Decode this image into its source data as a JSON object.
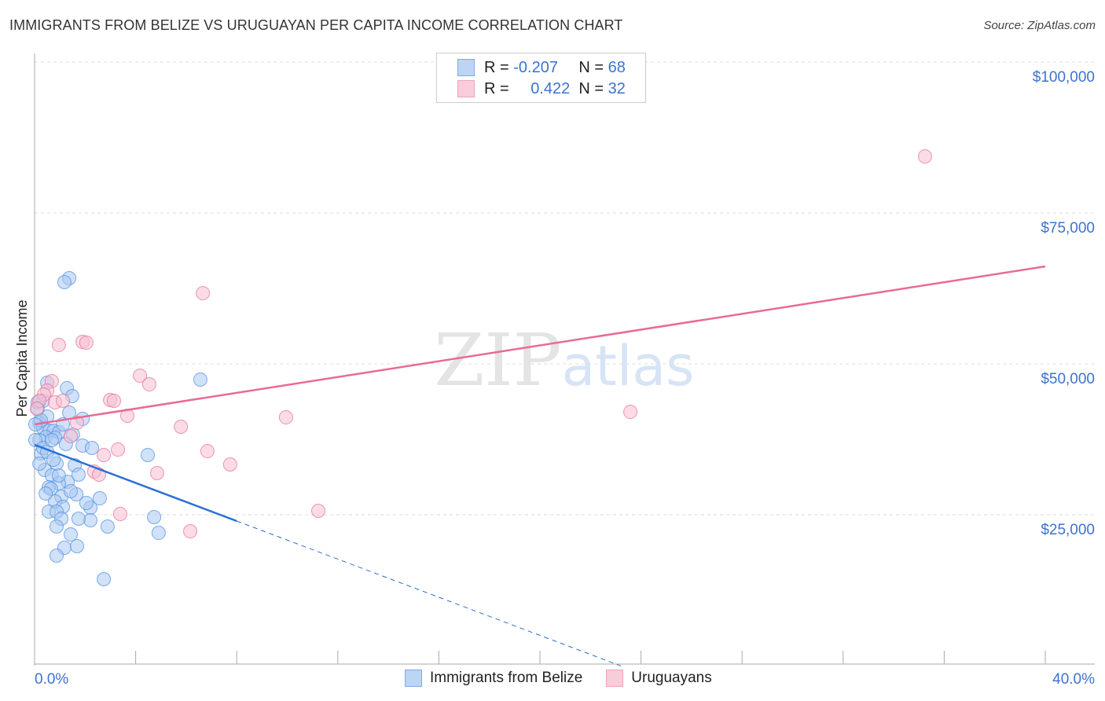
{
  "chart_data": {
    "type": "scatter",
    "title": "IMMIGRANTS FROM BELIZE VS URUGUAYAN PER CAPITA INCOME CORRELATION CHART",
    "source": "Source: ZipAtlas.com",
    "xlabel": "",
    "ylabel": "Per Capita Income",
    "xlim": [
      0,
      40
    ],
    "ylim": [
      0,
      101500
    ],
    "x_tick_labels": [
      "0.0%",
      "40.0%"
    ],
    "y_ticks": [
      25000,
      50000,
      75000,
      100000
    ],
    "y_tick_labels": [
      "$25,000",
      "$50,000",
      "$75,000",
      "$100,000"
    ],
    "grid": true,
    "watermark": "ZIPatlas",
    "legend_position": "top-center",
    "series": [
      {
        "name": "Immigrants from Belize",
        "color": "#4a8de0",
        "fill": "#a9c9f2",
        "R": "-0.207",
        "N": "68",
        "trend": {
          "x0": 0,
          "y0": 36590,
          "x1": 8.0,
          "y1": 23960,
          "dash_to_x": 23.2
        },
        "points": [
          [
            1.37,
            64190
          ],
          [
            1.18,
            63540
          ],
          [
            6.56,
            47400
          ],
          [
            1.28,
            45970
          ],
          [
            0.5,
            46870
          ],
          [
            1.49,
            44660
          ],
          [
            0.34,
            43880
          ],
          [
            0.12,
            43620
          ],
          [
            1.37,
            41930
          ],
          [
            1.9,
            40880
          ],
          [
            0.5,
            41270
          ],
          [
            0.19,
            40230
          ],
          [
            0.34,
            39320
          ],
          [
            0.59,
            38930
          ],
          [
            0.75,
            38930
          ],
          [
            0.96,
            38670
          ],
          [
            1.52,
            38280
          ],
          [
            0.44,
            37890
          ],
          [
            0.81,
            37760
          ],
          [
            0.19,
            37370
          ],
          [
            1.24,
            36720
          ],
          [
            1.9,
            36460
          ],
          [
            2.27,
            36070
          ],
          [
            4.48,
            34900
          ],
          [
            0.25,
            35150
          ],
          [
            0.87,
            33460
          ],
          [
            1.59,
            33200
          ],
          [
            0.4,
            32420
          ],
          [
            1.74,
            31640
          ],
          [
            0.68,
            31510
          ],
          [
            1.31,
            30470
          ],
          [
            0.96,
            30210
          ],
          [
            0.56,
            29560
          ],
          [
            0.65,
            29300
          ],
          [
            1.65,
            28380
          ],
          [
            1.06,
            27990
          ],
          [
            2.58,
            27730
          ],
          [
            0.81,
            27210
          ],
          [
            1.12,
            26300
          ],
          [
            2.21,
            26170
          ],
          [
            0.56,
            25520
          ],
          [
            0.87,
            25520
          ],
          [
            1.06,
            24350
          ],
          [
            2.21,
            24090
          ],
          [
            4.73,
            24610
          ],
          [
            2.89,
            23050
          ],
          [
            0.87,
            23050
          ],
          [
            1.43,
            21740
          ],
          [
            4.91,
            22000
          ],
          [
            1.18,
            19530
          ],
          [
            1.68,
            19790
          ],
          [
            0.87,
            18230
          ],
          [
            2.74,
            14320
          ],
          [
            0.12,
            42580
          ],
          [
            0.25,
            40620
          ],
          [
            0.03,
            37370
          ],
          [
            0.34,
            36070
          ],
          [
            0.5,
            35410
          ],
          [
            0.75,
            34110
          ],
          [
            2.05,
            26950
          ],
          [
            1.43,
            28900
          ],
          [
            0.44,
            28510
          ],
          [
            1.74,
            24350
          ],
          [
            0.03,
            39970
          ],
          [
            0.68,
            37370
          ],
          [
            1.12,
            39970
          ],
          [
            0.19,
            33460
          ],
          [
            0.96,
            31510
          ]
        ]
      },
      {
        "name": "Uruguayans",
        "color": "#e86b93",
        "fill": "#f7c0d1",
        "R": "0.422",
        "N": "32",
        "trend": {
          "x0": 0,
          "y0": 39970,
          "x1": 40,
          "y1": 66140
        },
        "points": [
          [
            35.24,
            84370
          ],
          [
            6.66,
            61710
          ],
          [
            0.96,
            53120
          ],
          [
            1.9,
            53640
          ],
          [
            2.05,
            53510
          ],
          [
            4.17,
            48040
          ],
          [
            4.54,
            46610
          ],
          [
            0.68,
            47130
          ],
          [
            0.5,
            45570
          ],
          [
            0.37,
            44920
          ],
          [
            0.19,
            43880
          ],
          [
            2.99,
            44010
          ],
          [
            3.14,
            43880
          ],
          [
            0.81,
            43620
          ],
          [
            3.67,
            41400
          ],
          [
            9.95,
            41140
          ],
          [
            23.58,
            42050
          ],
          [
            5.79,
            39580
          ],
          [
            1.68,
            40230
          ],
          [
            1.43,
            38020
          ],
          [
            3.3,
            35800
          ],
          [
            6.84,
            35540
          ],
          [
            2.74,
            34890
          ],
          [
            7.74,
            33330
          ],
          [
            2.36,
            32160
          ],
          [
            2.55,
            31640
          ],
          [
            4.85,
            31900
          ],
          [
            3.39,
            25130
          ],
          [
            11.23,
            25650
          ],
          [
            6.16,
            22260
          ],
          [
            1.12,
            43880
          ],
          [
            0.09,
            42580
          ]
        ]
      }
    ]
  },
  "legend": {
    "r_label": "R =",
    "n_label": "N =",
    "rows": [
      {
        "r": "-0.207",
        "n": "68"
      },
      {
        "r": "0.422",
        "n": "32"
      }
    ]
  }
}
